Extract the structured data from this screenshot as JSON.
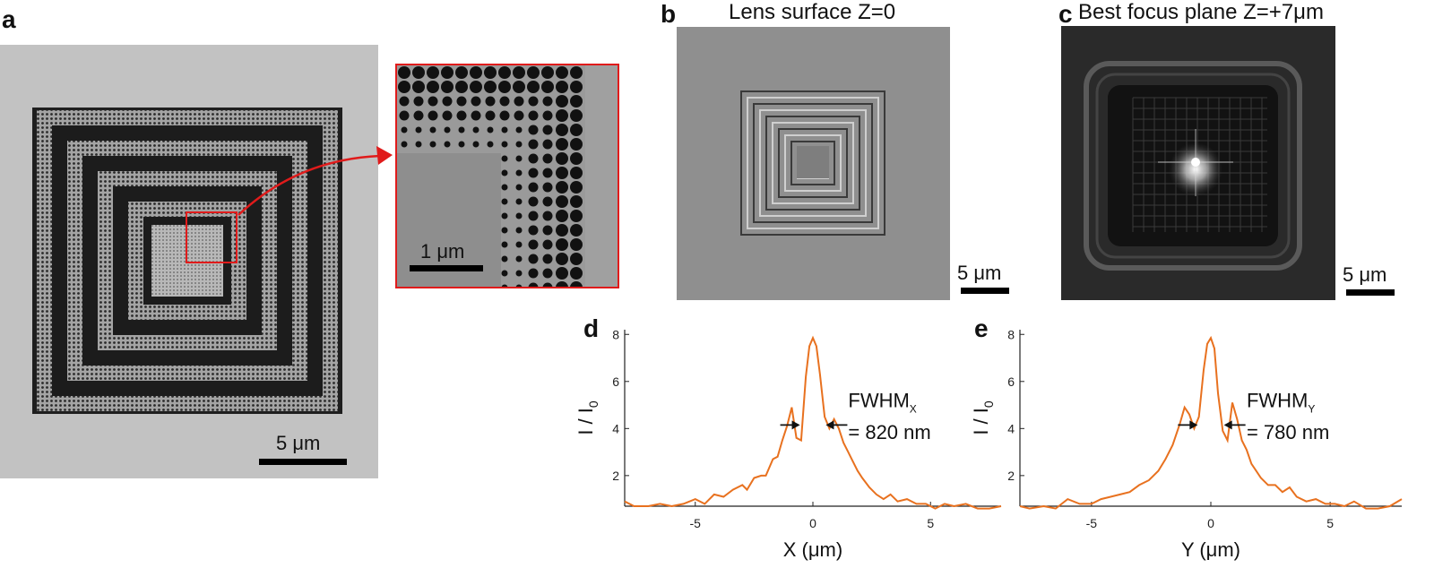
{
  "panels": {
    "a": {
      "label": "a",
      "scalebar": "5 μm",
      "inset_scalebar": "1 μm"
    },
    "b": {
      "label": "b",
      "title": "Lens surface Z=0",
      "scalebar": "5 μm"
    },
    "c": {
      "label": "c",
      "title": "Best focus plane Z=+7μm",
      "scalebar": "5 μm"
    },
    "d": {
      "label": "d"
    },
    "e": {
      "label": "e"
    }
  },
  "colors": {
    "curve": "#e8711f",
    "inset_border": "#e01b1b",
    "arrow": "#e01b1b"
  },
  "chart_data": [
    {
      "type": "line",
      "panel": "d",
      "xlabel": "X (μm)",
      "ylabel": "I / I0",
      "xlim": [
        -8,
        8
      ],
      "ylim": [
        0.7,
        8.2
      ],
      "xticks": [
        -5,
        0,
        5
      ],
      "yticks": [
        2,
        4,
        6,
        8
      ],
      "annotation": {
        "title": "FWHM",
        "subscript": "X",
        "value": "= 820 nm"
      },
      "x": [
        -8.2,
        -7.6,
        -7.0,
        -6.5,
        -6.0,
        -5.5,
        -5.0,
        -4.6,
        -4.2,
        -3.8,
        -3.4,
        -3.0,
        -2.8,
        -2.5,
        -2.2,
        -2.0,
        -1.7,
        -1.5,
        -1.3,
        -1.1,
        -0.9,
        -0.7,
        -0.5,
        -0.3,
        -0.15,
        0.0,
        0.15,
        0.3,
        0.5,
        0.7,
        0.9,
        1.1,
        1.3,
        1.5,
        1.7,
        1.9,
        2.1,
        2.4,
        2.7,
        3.0,
        3.3,
        3.6,
        4.0,
        4.4,
        4.8,
        5.2,
        5.6,
        6.0,
        6.5,
        7.0,
        7.5,
        8.0
      ],
      "y": [
        0.9,
        0.7,
        0.7,
        0.8,
        0.7,
        0.8,
        1.0,
        0.8,
        1.2,
        1.1,
        1.4,
        1.6,
        1.4,
        1.9,
        2.0,
        2.0,
        2.7,
        2.8,
        3.5,
        4.1,
        4.9,
        3.6,
        3.5,
        6.2,
        7.5,
        7.85,
        7.5,
        6.3,
        4.5,
        4.0,
        4.4,
        4.0,
        3.4,
        3.0,
        2.6,
        2.2,
        1.9,
        1.5,
        1.2,
        1.0,
        1.2,
        0.9,
        1.0,
        0.8,
        0.8,
        0.6,
        0.8,
        0.7,
        0.8,
        0.6,
        0.6,
        0.7
      ]
    },
    {
      "type": "line",
      "panel": "e",
      "xlabel": "Y (μm)",
      "ylabel": "I / I0",
      "xlim": [
        -8,
        8
      ],
      "ylim": [
        0.7,
        8.2
      ],
      "xticks": [
        -5,
        0,
        5
      ],
      "yticks": [
        2,
        4,
        6,
        8
      ],
      "annotation": {
        "title": "FWHM",
        "subscript": "Y",
        "value": "= 780 nm"
      },
      "x": [
        -8.2,
        -7.6,
        -7.0,
        -6.5,
        -6.0,
        -5.5,
        -5.0,
        -4.6,
        -4.2,
        -3.8,
        -3.4,
        -3.0,
        -2.6,
        -2.2,
        -1.9,
        -1.6,
        -1.3,
        -1.1,
        -0.9,
        -0.7,
        -0.5,
        -0.3,
        -0.15,
        0.0,
        0.15,
        0.3,
        0.5,
        0.7,
        0.9,
        1.1,
        1.3,
        1.5,
        1.7,
        1.9,
        2.1,
        2.4,
        2.7,
        3.0,
        3.3,
        3.6,
        4.0,
        4.4,
        4.8,
        5.2,
        5.6,
        6.0,
        6.5,
        7.0,
        7.5,
        8.0
      ],
      "y": [
        0.7,
        0.6,
        0.7,
        0.6,
        1.0,
        0.8,
        0.8,
        1.0,
        1.1,
        1.2,
        1.3,
        1.6,
        1.8,
        2.2,
        2.7,
        3.3,
        4.2,
        4.9,
        4.6,
        4.0,
        4.5,
        6.5,
        7.6,
        7.85,
        7.4,
        5.5,
        3.9,
        3.5,
        5.1,
        4.4,
        3.5,
        3.1,
        2.5,
        2.2,
        1.9,
        1.6,
        1.6,
        1.3,
        1.5,
        1.1,
        0.9,
        1.0,
        0.8,
        0.8,
        0.7,
        0.9,
        0.6,
        0.6,
        0.7,
        1.0
      ]
    }
  ]
}
